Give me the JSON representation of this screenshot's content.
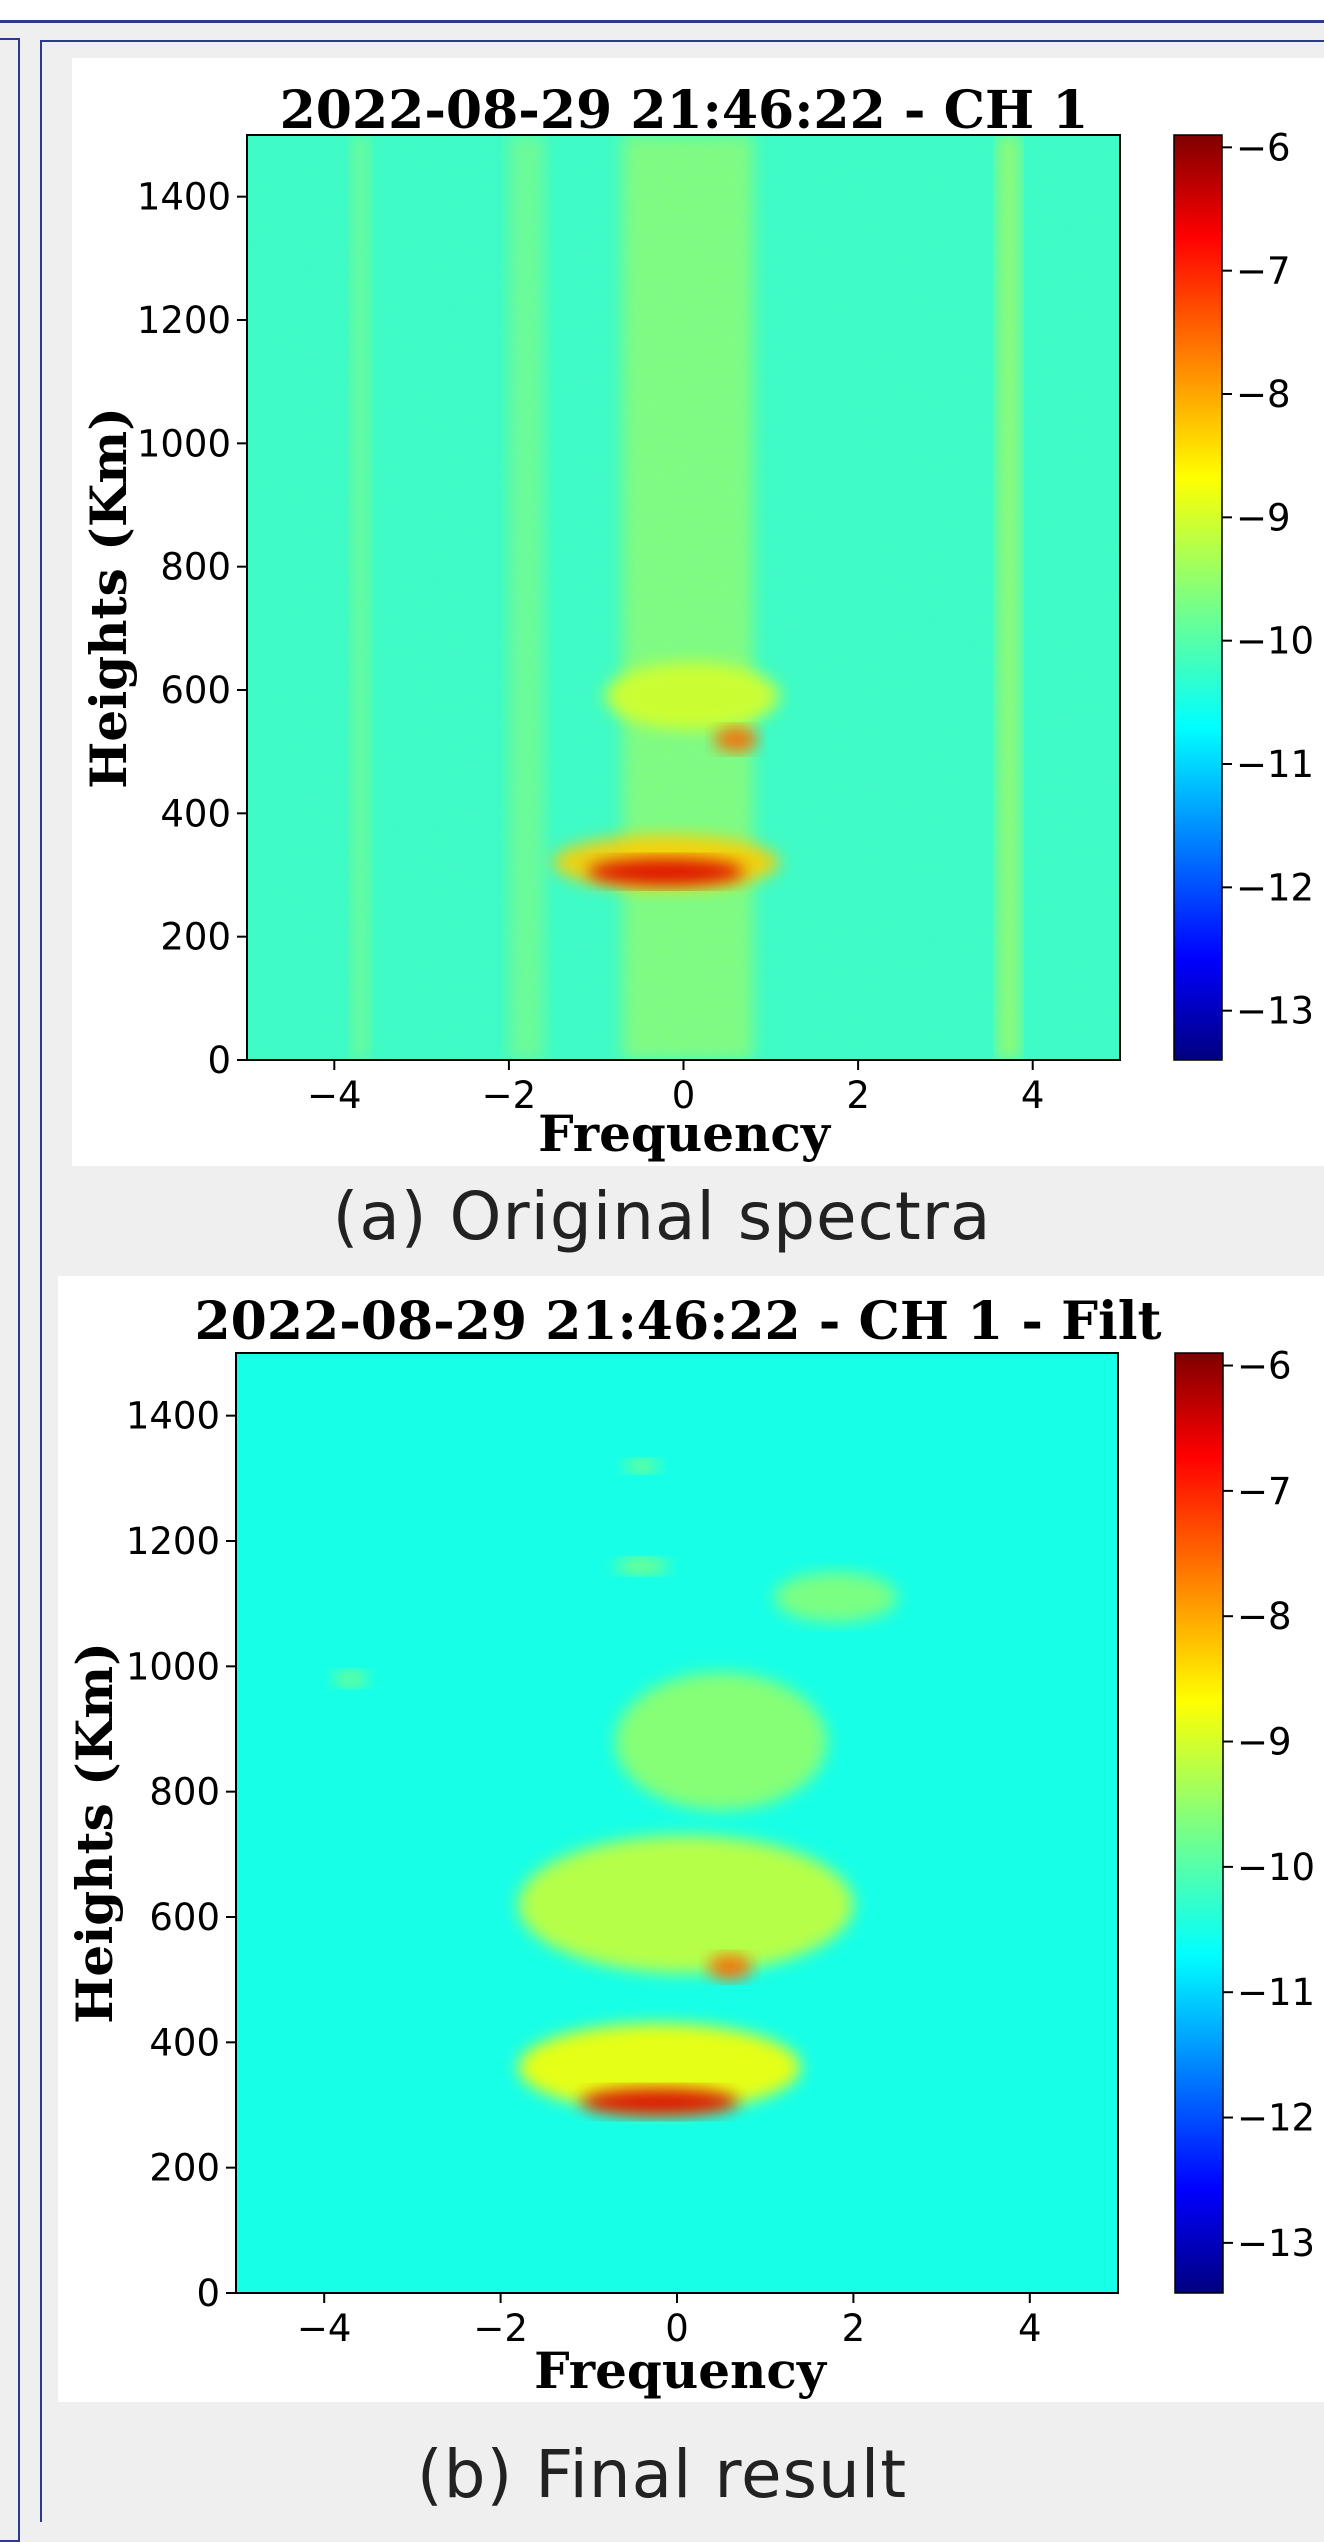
{
  "captions": {
    "a": "(a)  Original spectra",
    "b": "(b) Final result"
  },
  "colors": {
    "frame": "#2b3990",
    "background_a": "#4ee8b4",
    "background_b": "#33ffc4",
    "strong_echo": "#b40000",
    "colormap": "jet"
  },
  "chart_data": [
    {
      "type": "heatmap",
      "title": "2022-08-29 21:46:22 - CH 1",
      "xlabel": "Frequency",
      "ylabel": "Heights (Km)",
      "xlim": [
        -5,
        5
      ],
      "ylim": [
        0,
        1500
      ],
      "x_ticks": [
        -4,
        -2,
        0,
        2,
        4
      ],
      "y_ticks": [
        0,
        200,
        400,
        600,
        800,
        1000,
        1200,
        1400
      ],
      "colorbar": {
        "min": -13.4,
        "max": -5.9,
        "ticks": [
          -6,
          -7,
          -8,
          -9,
          -10,
          -11,
          -12,
          -13
        ],
        "colormap": "jet"
      },
      "background_level": -10.2,
      "bands": [
        {
          "x_from": -3.8,
          "x_to": -3.6,
          "y_from": 0,
          "y_to": 1500,
          "level": -9.7
        },
        {
          "x_from": -2.0,
          "x_to": -1.6,
          "y_from": 0,
          "y_to": 1500,
          "level": -9.7
        },
        {
          "x_from": -0.7,
          "x_to": 0.8,
          "y_from": 0,
          "y_to": 1500,
          "level": -9.5
        },
        {
          "x_from": 3.6,
          "x_to": 3.85,
          "y_from": 0,
          "y_to": 1500,
          "level": -9.3
        }
      ],
      "echoes": [
        {
          "x_center": 0.1,
          "y_center": 590,
          "x_halfwidth": 1.0,
          "y_halfwidth": 55,
          "level": -9.0
        },
        {
          "x_center": 0.6,
          "y_center": 520,
          "x_halfwidth": 0.25,
          "y_halfwidth": 20,
          "level": -7.5
        },
        {
          "x_center": -0.2,
          "y_center": 320,
          "x_halfwidth": 1.3,
          "y_halfwidth": 45,
          "level": -8.3
        },
        {
          "x_center": -0.2,
          "y_center": 305,
          "x_halfwidth": 0.9,
          "y_halfwidth": 22,
          "level": -6.5
        }
      ]
    },
    {
      "type": "heatmap",
      "title": "2022-08-29 21:46:22 - CH 1 - Filt",
      "xlabel": "Frequency",
      "ylabel": "Heights (Km)",
      "xlim": [
        -5,
        5
      ],
      "ylim": [
        0,
        1500
      ],
      "x_ticks": [
        -4,
        -2,
        0,
        2,
        4
      ],
      "y_ticks": [
        0,
        200,
        400,
        600,
        800,
        1000,
        1200,
        1400
      ],
      "colorbar": {
        "min": -13.4,
        "max": -5.9,
        "ticks": [
          -6,
          -7,
          -8,
          -9,
          -10,
          -11,
          -12,
          -13
        ],
        "colormap": "jet"
      },
      "background_level": -10.5,
      "echoes": [
        {
          "x_center": 0.5,
          "y_center": 880,
          "x_halfwidth": 1.2,
          "y_halfwidth": 110,
          "level": -9.5
        },
        {
          "x_center": 1.8,
          "y_center": 1110,
          "x_halfwidth": 0.7,
          "y_halfwidth": 40,
          "level": -9.6
        },
        {
          "x_center": -0.4,
          "y_center": 1160,
          "x_halfwidth": 0.3,
          "y_halfwidth": 12,
          "level": -9.5
        },
        {
          "x_center": -0.4,
          "y_center": 1320,
          "x_halfwidth": 0.2,
          "y_halfwidth": 10,
          "level": -9.5
        },
        {
          "x_center": -3.7,
          "y_center": 980,
          "x_halfwidth": 0.2,
          "y_halfwidth": 12,
          "level": -9.6
        },
        {
          "x_center": 0.1,
          "y_center": 620,
          "x_halfwidth": 1.9,
          "y_halfwidth": 110,
          "level": -9.1
        },
        {
          "x_center": 0.6,
          "y_center": 520,
          "x_halfwidth": 0.25,
          "y_halfwidth": 20,
          "level": -7.5
        },
        {
          "x_center": -0.2,
          "y_center": 360,
          "x_halfwidth": 1.6,
          "y_halfwidth": 70,
          "level": -8.7
        },
        {
          "x_center": -0.2,
          "y_center": 305,
          "x_halfwidth": 0.9,
          "y_halfwidth": 22,
          "level": -6.5
        }
      ]
    }
  ]
}
